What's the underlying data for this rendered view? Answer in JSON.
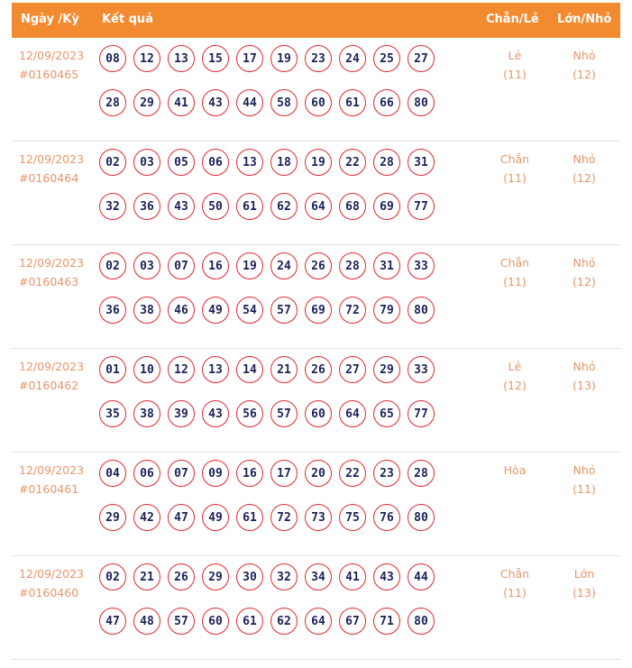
{
  "header": {
    "date": "Ngày /Kỳ",
    "result": "Kết quả",
    "even_odd": "Chẵn/Lẻ",
    "big_small": "Lớn/Nhỏ"
  },
  "colors": {
    "header_bg": "#f28b30",
    "ball_border": "#e0282e",
    "ball_text": "#1b2258",
    "meta_text": "#e8956a"
  },
  "rows": [
    {
      "date": "12/09/2023",
      "draw": "#0160465",
      "numbers": [
        "08",
        "12",
        "13",
        "15",
        "17",
        "19",
        "23",
        "24",
        "25",
        "27",
        "28",
        "29",
        "41",
        "43",
        "44",
        "58",
        "60",
        "61",
        "66",
        "80"
      ],
      "even_odd": "Lẻ",
      "even_odd_count": "(11)",
      "big_small": "Nhỏ",
      "big_small_count": "(12)"
    },
    {
      "date": "12/09/2023",
      "draw": "#0160464",
      "numbers": [
        "02",
        "03",
        "05",
        "06",
        "13",
        "18",
        "19",
        "22",
        "28",
        "31",
        "32",
        "36",
        "43",
        "50",
        "61",
        "62",
        "64",
        "68",
        "69",
        "77"
      ],
      "even_odd": "Chẵn",
      "even_odd_count": "(11)",
      "big_small": "Nhỏ",
      "big_small_count": "(12)"
    },
    {
      "date": "12/09/2023",
      "draw": "#0160463",
      "numbers": [
        "02",
        "03",
        "07",
        "16",
        "19",
        "24",
        "26",
        "28",
        "31",
        "33",
        "36",
        "38",
        "46",
        "49",
        "54",
        "57",
        "69",
        "72",
        "79",
        "80"
      ],
      "even_odd": "Chẵn",
      "even_odd_count": "(11)",
      "big_small": "Nhỏ",
      "big_small_count": "(12)"
    },
    {
      "date": "12/09/2023",
      "draw": "#0160462",
      "numbers": [
        "01",
        "10",
        "12",
        "13",
        "14",
        "21",
        "26",
        "27",
        "29",
        "33",
        "35",
        "38",
        "39",
        "43",
        "56",
        "57",
        "60",
        "64",
        "65",
        "77"
      ],
      "even_odd": "Lẻ",
      "even_odd_count": "(12)",
      "big_small": "Nhỏ",
      "big_small_count": "(13)"
    },
    {
      "date": "12/09/2023",
      "draw": "#0160461",
      "numbers": [
        "04",
        "06",
        "07",
        "09",
        "16",
        "17",
        "20",
        "22",
        "23",
        "28",
        "29",
        "42",
        "47",
        "49",
        "61",
        "72",
        "73",
        "75",
        "76",
        "80"
      ],
      "even_odd": "Hòa",
      "even_odd_count": "",
      "big_small": "Nhỏ",
      "big_small_count": "(11)"
    },
    {
      "date": "12/09/2023",
      "draw": "#0160460",
      "numbers": [
        "02",
        "21",
        "26",
        "29",
        "30",
        "32",
        "34",
        "41",
        "43",
        "44",
        "47",
        "48",
        "57",
        "60",
        "61",
        "62",
        "64",
        "67",
        "71",
        "80"
      ],
      "even_odd": "Chẵn",
      "even_odd_count": "(11)",
      "big_small": "Lớn",
      "big_small_count": "(13)"
    }
  ]
}
